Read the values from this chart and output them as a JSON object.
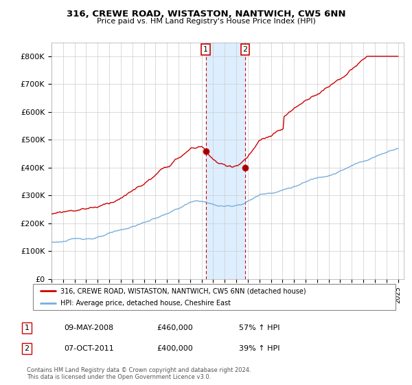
{
  "title": "316, CREWE ROAD, WISTASTON, NANTWICH, CW5 6NN",
  "subtitle": "Price paid vs. HM Land Registry's House Price Index (HPI)",
  "property_label": "316, CREWE ROAD, WISTASTON, NANTWICH, CW5 6NN (detached house)",
  "hpi_label": "HPI: Average price, detached house, Cheshire East",
  "transaction1_date": "09-MAY-2008",
  "transaction1_price": "£460,000",
  "transaction1_hpi": "57% ↑ HPI",
  "transaction1_year": 2008.36,
  "transaction2_date": "07-OCT-2011",
  "transaction2_price": "£400,000",
  "transaction2_hpi": "39% ↑ HPI",
  "transaction2_year": 2011.77,
  "property_color": "#cc0000",
  "hpi_color": "#7aaddb",
  "shaded_color": "#ddeeff",
  "background_color": "#ffffff",
  "grid_color": "#cccccc",
  "ylim": [
    0,
    850000
  ],
  "xlim_start": 1995,
  "xlim_end": 2025.5,
  "footer": "Contains HM Land Registry data © Crown copyright and database right 2024.\nThis data is licensed under the Open Government Licence v3.0."
}
